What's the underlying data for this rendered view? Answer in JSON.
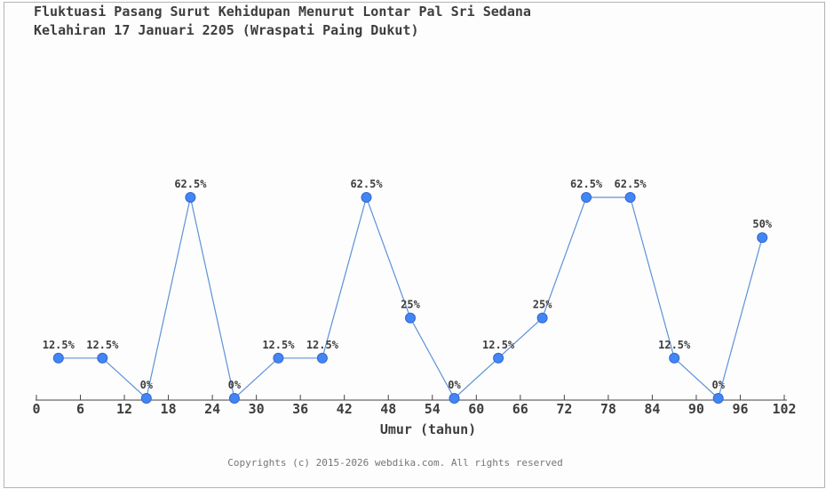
{
  "title": {
    "line1": "Fluktuasi Pasang Surut Kehidupan Menurut Lontar Pal Sri Sedana",
    "line2": "Kelahiran 17 Januari 2205 (Wraspati Paing Dukut)"
  },
  "chart_data": {
    "type": "line",
    "title": "Fluktuasi Pasang Surut Kehidupan Menurut Lontar Pal Sri Sedana Kelahiran 17 Januari 2205 (Wraspati Paing Dukut)",
    "xlabel": "Umur (tahun)",
    "ylabel": "",
    "x": [
      3,
      9,
      15,
      21,
      27,
      33,
      39,
      45,
      51,
      57,
      63,
      69,
      75,
      81,
      87,
      93,
      99
    ],
    "values": [
      12.5,
      12.5,
      0,
      62.5,
      0,
      12.5,
      12.5,
      62.5,
      25,
      0,
      12.5,
      25,
      62.5,
      62.5,
      12.5,
      0,
      50
    ],
    "point_labels": [
      "12.5%",
      "12.5%",
      "0%",
      "62.5%",
      "0%",
      "12.5%",
      "12.5%",
      "62.5%",
      "25%",
      "0%",
      "12.5%",
      "25%",
      "62.5%",
      "62.5%",
      "12.5%",
      "0%",
      "50%"
    ],
    "x_ticks": [
      0,
      6,
      12,
      18,
      24,
      30,
      36,
      42,
      48,
      54,
      60,
      66,
      72,
      78,
      84,
      90,
      96,
      102
    ],
    "xlim": [
      0,
      102
    ],
    "ylim": [
      0,
      100
    ],
    "grid": false,
    "legend": null,
    "colors": {
      "line": "#5e92d8",
      "marker_fill": "#4285f4",
      "marker_stroke": "#3367cf",
      "axis": "#444444",
      "label_text": "#3d3d3d",
      "tick_text": "#3d3d3d"
    }
  },
  "footer": {
    "copyright": "Copyrights (c) 2015-2026 webdika.com. All rights reserved"
  }
}
